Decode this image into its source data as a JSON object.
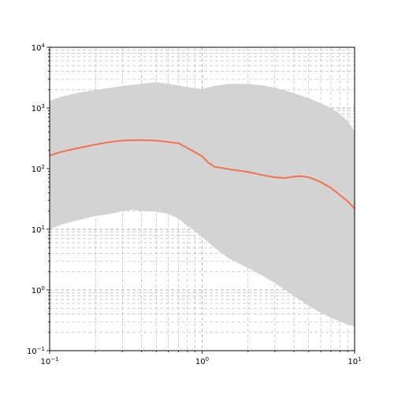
{
  "chart_data": {
    "type": "line",
    "title": "",
    "xlabel": "",
    "ylabel": "",
    "xscale": "log",
    "yscale": "log",
    "xlim": [
      0.1,
      10
    ],
    "ylim": [
      0.1,
      10000
    ],
    "grid": true,
    "grid_which": "both",
    "x_tick_labels": [
      {
        "value": 0.1,
        "base": "10",
        "exp": "−1"
      },
      {
        "value": 1,
        "base": "10",
        "exp": "0"
      },
      {
        "value": 10,
        "base": "10",
        "exp": "1"
      }
    ],
    "y_tick_labels": [
      {
        "value": 0.1,
        "base": "10",
        "exp": "−1"
      },
      {
        "value": 1,
        "base": "10",
        "exp": "0"
      },
      {
        "value": 10,
        "base": "10",
        "exp": "1"
      },
      {
        "value": 100,
        "base": "10",
        "exp": "2"
      },
      {
        "value": 1000,
        "base": "10",
        "exp": "3"
      },
      {
        "value": 10000,
        "base": "10",
        "exp": "4"
      }
    ],
    "colors": {
      "band": "#d3d3d3",
      "line": "#f4714f",
      "grid": "#b0b0b0"
    },
    "band": {
      "x": [
        0.1,
        0.12,
        0.15,
        0.2,
        0.25,
        0.3,
        0.35,
        0.4,
        0.5,
        0.6,
        0.7,
        0.8,
        1.0,
        1.2,
        1.5,
        2.0,
        2.5,
        3.0,
        3.5,
        4.0,
        5.0,
        6.0,
        7.0,
        8.0,
        9.0,
        10.0
      ],
      "upper": [
        1300,
        1550,
        1750,
        2000,
        2150,
        2300,
        2400,
        2500,
        2650,
        2500,
        2350,
        2200,
        2050,
        2300,
        2500,
        2500,
        2350,
        2150,
        1950,
        1750,
        1450,
        1200,
        1000,
        800,
        600,
        420
      ],
      "lower": [
        10,
        12,
        14,
        16.5,
        18,
        20,
        21,
        20,
        19.5,
        18,
        15,
        11.5,
        7.5,
        5,
        3.3,
        2.3,
        1.7,
        1.3,
        1.0,
        0.8,
        0.55,
        0.42,
        0.35,
        0.3,
        0.27,
        0.25
      ]
    },
    "series": [
      {
        "x": [
          0.1,
          0.12,
          0.15,
          0.2,
          0.25,
          0.3,
          0.35,
          0.4,
          0.5,
          0.6,
          0.7,
          0.8,
          1.0,
          1.1,
          1.2,
          1.5,
          2.0,
          2.5,
          3.0,
          3.5,
          4.0,
          4.5,
          5.0,
          5.5,
          6.0,
          7.0,
          8.0,
          9.0,
          10.0
        ],
        "values": [
          165,
          190,
          215,
          250,
          275,
          290,
          295,
          295,
          290,
          275,
          262,
          220,
          160,
          125,
          108,
          98,
          88,
          78,
          72,
          70,
          74,
          75,
          72,
          66,
          60,
          48,
          37,
          29,
          22
        ]
      }
    ]
  }
}
